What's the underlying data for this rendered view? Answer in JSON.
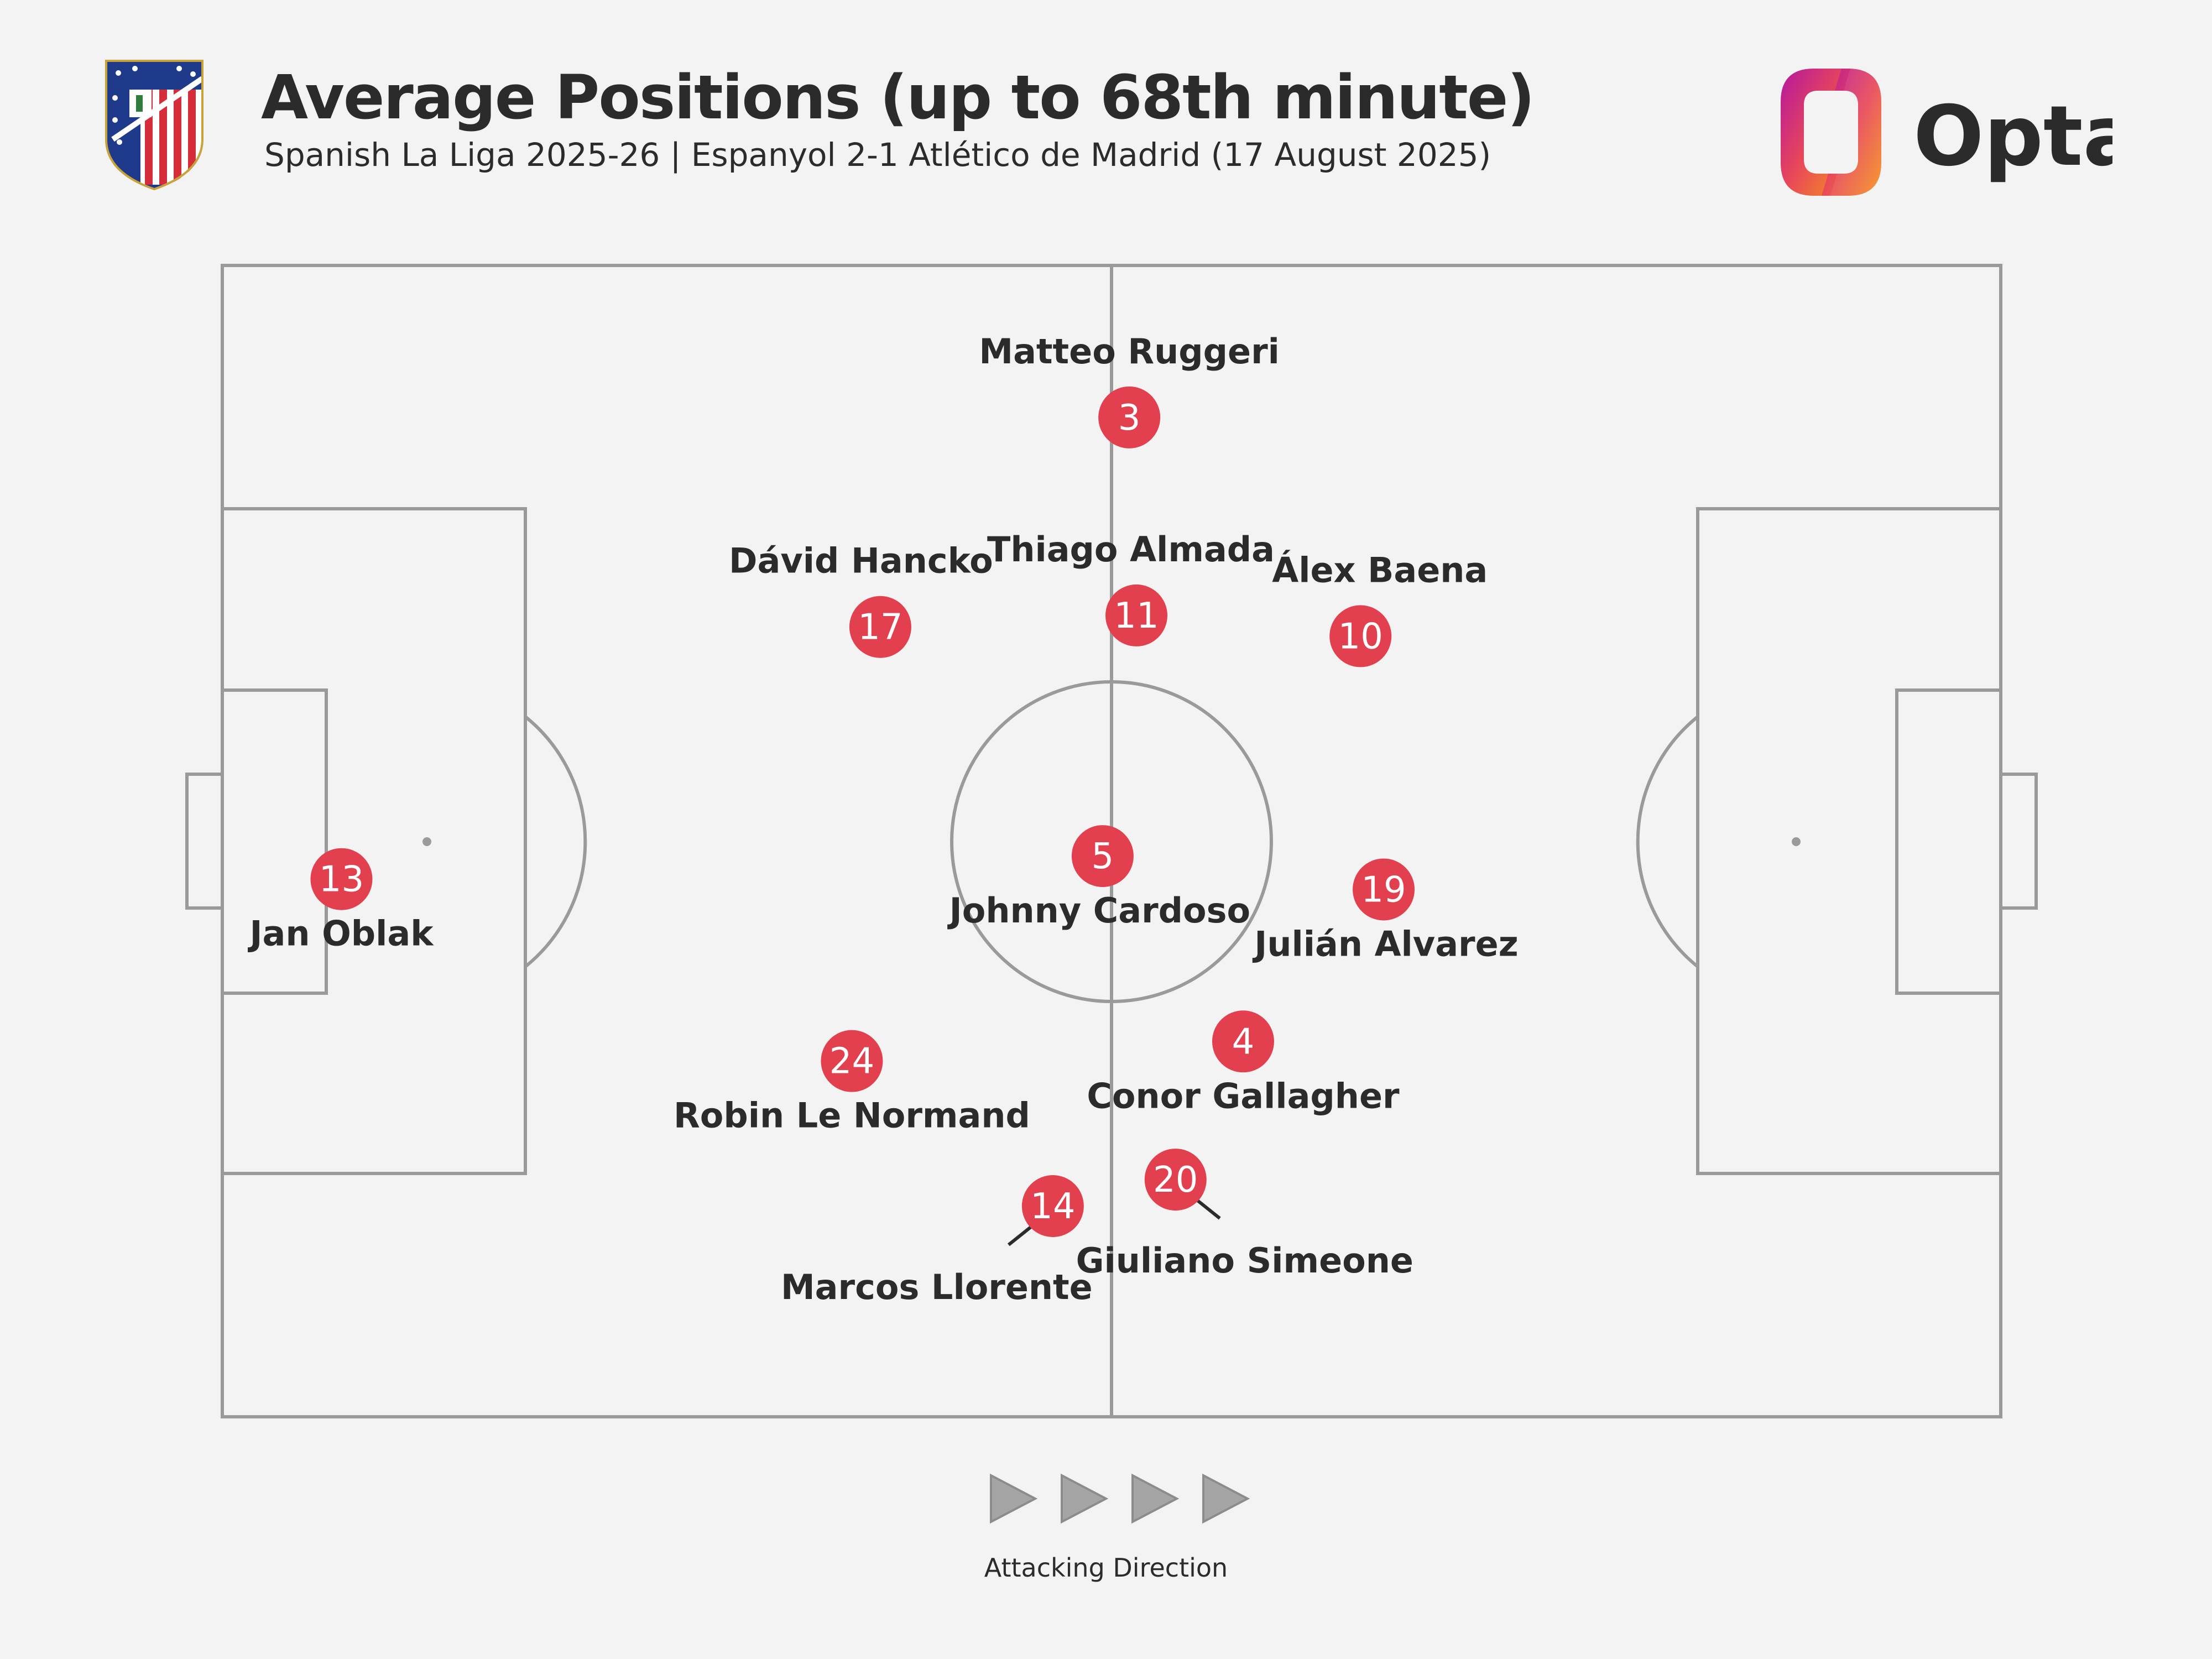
{
  "header": {
    "title": "Average Positions (up to 68th minute)",
    "subtitle": "Spanish La Liga 2025-26 | Espanyol 2-1 Atlético de Madrid (17 August 2025)",
    "brand_name": "Opta",
    "team_crest": "atletico-madrid-crest"
  },
  "colors": {
    "background": "#f3f3f3",
    "pitch_lines": "#9a9a9a",
    "player_marker": "#e2404f",
    "text": "#2b2b2b",
    "arrow": "#a5a5a5"
  },
  "players": [
    {
      "number": "3",
      "name": "Matteo Ruggeri",
      "x": 51.0,
      "y": 13.2
    },
    {
      "number": "17",
      "name": "Dávid Hancko",
      "x": 37.0,
      "y": 31.4
    },
    {
      "number": "11",
      "name": "Thiago Almada",
      "x": 51.4,
      "y": 30.4
    },
    {
      "number": "10",
      "name": "Álex Baena",
      "x": 64.0,
      "y": 32.2
    },
    {
      "number": "13",
      "name": "Jan Oblak",
      "x": 6.7,
      "y": 53.3
    },
    {
      "number": "5",
      "name": "Johnny Cardoso",
      "x": 49.5,
      "y": 51.3
    },
    {
      "number": "19",
      "name": "Julián Alvarez",
      "x": 65.3,
      "y": 54.2
    },
    {
      "number": "24",
      "name": "Robin Le Normand",
      "x": 35.4,
      "y": 69.1
    },
    {
      "number": "4",
      "name": "Conor Gallagher",
      "x": 57.4,
      "y": 67.4
    },
    {
      "number": "14",
      "name": "Marcos Llorente",
      "x": 46.7,
      "y": 81.7
    },
    {
      "number": "20",
      "name": "Giuliano Simeone",
      "x": 53.6,
      "y": 79.4
    }
  ],
  "footer": {
    "attacking_direction_label": "Attacking Direction"
  }
}
